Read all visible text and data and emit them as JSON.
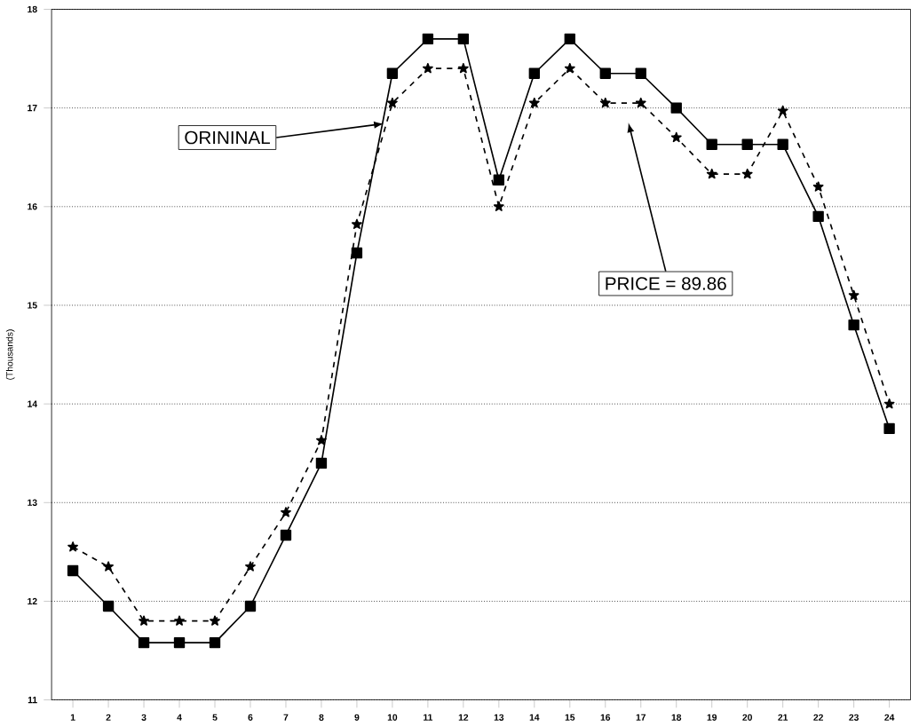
{
  "chart_data": {
    "type": "line",
    "ylabel": "(Thousands)",
    "categories": [
      "1",
      "2",
      "3",
      "4",
      "5",
      "6",
      "7",
      "8",
      "9",
      "10",
      "11",
      "12",
      "13",
      "14",
      "15",
      "16",
      "17",
      "18",
      "19",
      "20",
      "21",
      "22",
      "23",
      "24"
    ],
    "series": [
      {
        "name": "ORININAL",
        "color": "#000000",
        "marker": "square",
        "line_style": "solid",
        "values": [
          12.31,
          11.95,
          11.58,
          11.58,
          11.58,
          11.95,
          12.67,
          13.4,
          15.53,
          17.35,
          17.7,
          17.7,
          16.27,
          17.35,
          17.7,
          17.35,
          17.35,
          17.0,
          16.63,
          16.63,
          16.63,
          15.9,
          14.8,
          13.75
        ]
      },
      {
        "name": "PRICE = 89.86",
        "color": "#000000",
        "marker": "star",
        "line_style": "dashed",
        "values": [
          12.55,
          12.35,
          11.8,
          11.8,
          11.8,
          12.35,
          12.9,
          13.63,
          15.82,
          17.05,
          17.4,
          17.4,
          16.0,
          17.05,
          17.4,
          17.05,
          17.05,
          16.7,
          16.33,
          16.33,
          16.97,
          16.2,
          15.1,
          14.0
        ]
      }
    ],
    "ylim": [
      11,
      18
    ],
    "yticks": [
      11,
      12,
      13,
      14,
      15,
      16,
      17,
      18
    ],
    "grid": "y",
    "legend": false
  }
}
